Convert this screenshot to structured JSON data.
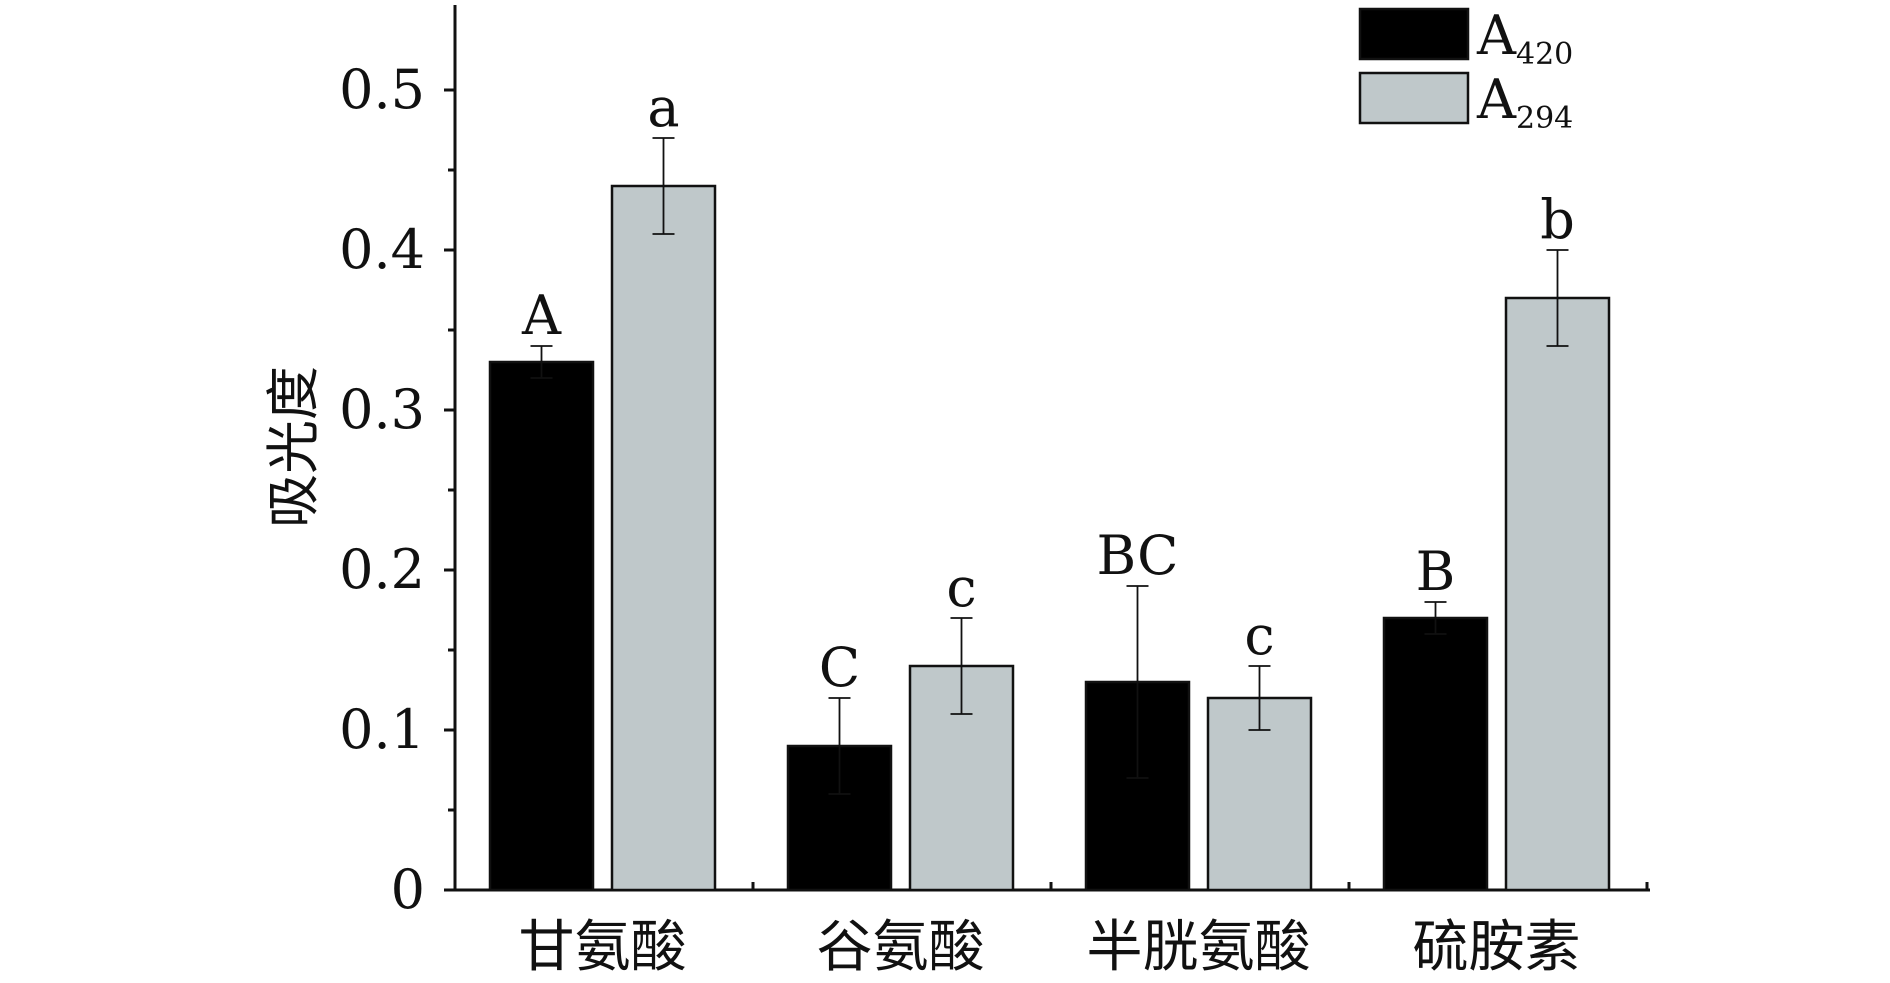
{
  "chart_data": {
    "type": "bar",
    "categories": [
      "甘氨酸",
      "谷氨酸",
      "半胱氨酸",
      "硫胺素"
    ],
    "ylabel": "吸光度",
    "ylim": [
      0,
      0.55
    ],
    "yticks": [
      "0",
      "0.1",
      "0.2",
      "0.3",
      "0.4",
      "0.5"
    ],
    "grid": false,
    "legend": "top-right",
    "series": [
      {
        "name_main": "A",
        "name_sub": "420",
        "color": "#000000",
        "values": [
          0.33,
          0.09,
          0.13,
          0.17
        ],
        "errors": [
          0.01,
          0.03,
          0.06,
          0.01
        ],
        "labels": [
          "A",
          "C",
          "BC",
          "B"
        ]
      },
      {
        "name_main": "A",
        "name_sub": "294",
        "color": "#bfc8ca",
        "values": [
          0.44,
          0.14,
          0.12,
          0.37
        ],
        "errors": [
          0.03,
          0.03,
          0.02,
          0.03
        ],
        "labels": [
          "a",
          "c",
          "c",
          "b"
        ]
      }
    ]
  }
}
